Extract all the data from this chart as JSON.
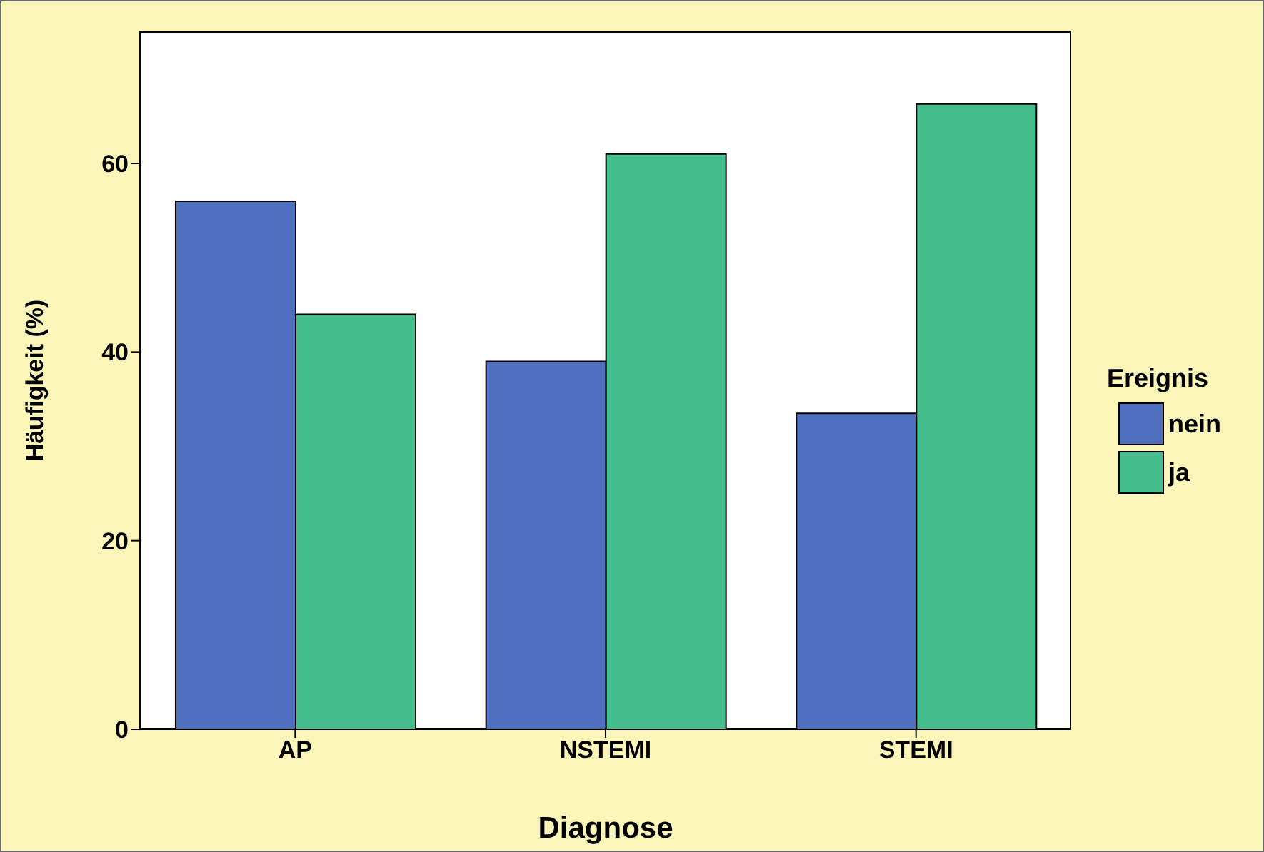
{
  "chart_data": {
    "type": "bar",
    "xlabel": "Diagnose",
    "ylabel": "Häufigkeit (%)",
    "legend_title": "Ereignis",
    "legend": "right",
    "categories": [
      "AP",
      "NSTEMI",
      "STEMI"
    ],
    "series": [
      {
        "name": "nein",
        "color": "#4e6fbd",
        "values": [
          56,
          39,
          33.5
        ]
      },
      {
        "name": "ja",
        "color": "#45be8e",
        "values": [
          44,
          61,
          66.3
        ]
      }
    ],
    "ylim": [
      0,
      74
    ],
    "yticks": [
      0,
      20,
      40,
      60
    ]
  }
}
